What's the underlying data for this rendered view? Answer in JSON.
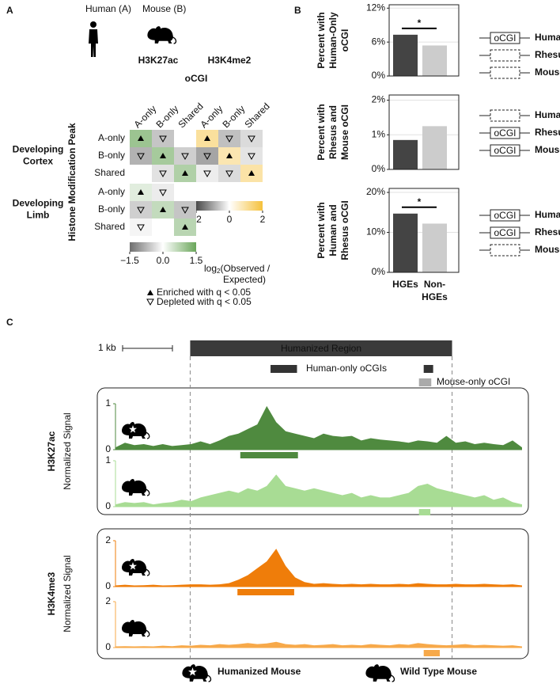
{
  "panel_labels": [
    "A",
    "B",
    "C"
  ],
  "panel_a": {
    "human": "Human (A)",
    "mouse": "Mouse (B)",
    "mark1": "H3K27ac",
    "mark1_color": "#5b9a4f",
    "mark2": "H3K4me2",
    "mark2_color": "#f5c13b",
    "column_group": "oCGI",
    "row_axis": "Histone Modification Peak",
    "columns": [
      "A-only",
      "B-only",
      "Shared"
    ],
    "rows": [
      "A-only",
      "B-only",
      "Shared"
    ],
    "tissues": [
      [
        "Developing",
        "Cortex"
      ],
      [
        "Developing",
        "Limb"
      ]
    ],
    "legend_title": {
      "base": "log",
      "sub": "2",
      "rest": "(Observed /",
      "rest2": "Expected)"
    },
    "enriched": "Enriched with q < 0.05",
    "depleted": "Depleted with q < 0.05"
  },
  "panel_b": {
    "box_label": "oCGI",
    "species": [
      "Human",
      "Rhesus",
      "Mouse"
    ]
  },
  "panel_c": {
    "xlim": [
      0,
      43
    ],
    "scale": "1 kb",
    "region": "Humanized Region",
    "region_range": [
      7.9,
      35.6
    ],
    "human_ocgi": "Human-only oCGIs",
    "human_ocgi_ranges": [
      [
        16.4,
        19.2
      ],
      [
        32.6,
        33.6
      ]
    ],
    "mouse_ocgi": "Mouse-only oCGI",
    "mouse_ocgi_ranges": [
      [
        32.1,
        33.4
      ]
    ],
    "marks": [
      {
        "name": "H3K27ac",
        "ylabel": "Normalized Signal",
        "color": "#2e7d46"
      },
      {
        "name": "H3K4me3",
        "ylabel": "Normalized Signal",
        "color": "#e8590c"
      }
    ],
    "humanized": "Humanized Mouse",
    "wild_type": "Wild Type Mouse"
  },
  "chart_data": [
    {
      "type": "heatmap",
      "tissue": 0,
      "zlim": [
        -1.5,
        1.5
      ],
      "colors": [
        "#6e6e6e",
        "#ffffff",
        "#6aa65a"
      ],
      "zticks": [
        {
          "value": -1.5,
          "label": "−1.5"
        },
        {
          "value": 0,
          "label": "0.0"
        },
        1.5
      ],
      "values": [
        [
          1.0,
          -0.6,
          0.0
        ],
        [
          -0.8,
          0.9,
          -0.5
        ],
        [
          0.0,
          -0.3,
          0.8
        ]
      ],
      "significance": [
        [
          "enriched",
          "depleted",
          null
        ],
        [
          "depleted",
          "enriched",
          "depleted"
        ],
        [
          null,
          "depleted",
          "enriched"
        ]
      ]
    },
    {
      "type": "heatmap",
      "tissue": 0,
      "zlim": [
        -2,
        2
      ],
      "colors": [
        "#4a4a4a",
        "#ffffff",
        "#f5c13b"
      ],
      "zticks": [
        {
          "value": -2,
          "label": "−2"
        },
        0,
        2
      ],
      "values": [
        [
          1.0,
          -0.7,
          -0.4
        ],
        [
          -1.0,
          0.8,
          -0.3
        ],
        [
          -0.2,
          -0.4,
          0.9
        ]
      ],
      "significance": [
        [
          "enriched",
          "depleted",
          "depleted"
        ],
        [
          "depleted",
          "enriched",
          "depleted"
        ],
        [
          "depleted",
          "depleted",
          "enriched"
        ]
      ]
    },
    {
      "type": "heatmap",
      "tissue": 1,
      "zlim": [
        -1.5,
        1.5
      ],
      "colors": [
        "#6e6e6e",
        "#ffffff",
        "#6aa65a"
      ],
      "values": [
        [
          0.3,
          -0.2,
          0.0
        ],
        [
          -0.5,
          0.6,
          -0.6
        ],
        [
          -0.1,
          0.0,
          0.7
        ]
      ],
      "significance": [
        [
          "enriched",
          "depleted",
          null
        ],
        [
          "depleted",
          "enriched",
          "depleted"
        ],
        [
          "depleted",
          null,
          "enriched"
        ]
      ]
    },
    {
      "type": "bar",
      "ylabel": [
        "Percent with",
        "Human-Only",
        "oCGI"
      ],
      "colors": [
        "#444444",
        "#cccccc"
      ],
      "values": [
        7.3,
        5.4
      ],
      "ylim": [
        0,
        12.6
      ],
      "yticks": [
        {
          "value": 0,
          "label": "0%"
        },
        {
          "value": 6,
          "label": "6%"
        },
        {
          "value": 12,
          "label": "12%"
        }
      ],
      "annotation": "*",
      "present": [
        true,
        false,
        false
      ]
    },
    {
      "type": "bar",
      "ylabel": [
        "Percent with",
        "Rhesus and",
        "Mouse oCGI"
      ],
      "colors": [
        "#444444",
        "#cccccc"
      ],
      "values": [
        0.85,
        1.25
      ],
      "ylim": [
        0,
        2.15
      ],
      "yticks": [
        {
          "value": 0,
          "label": "0%"
        },
        {
          "value": 1,
          "label": "1%"
        },
        {
          "value": 2,
          "label": "2%"
        }
      ],
      "present": [
        false,
        true,
        true
      ]
    },
    {
      "type": "bar",
      "ylabel": [
        "Percent with",
        "Human and",
        "Rhesus oCGI"
      ],
      "colors": [
        "#444444",
        "#cccccc"
      ],
      "values": [
        14.7,
        12.2
      ],
      "ylim": [
        0,
        21
      ],
      "yticks": [
        {
          "value": 0,
          "label": "0%"
        },
        {
          "value": 10,
          "label": "10%"
        },
        {
          "value": 20,
          "label": "20%"
        }
      ],
      "annotation": "*",
      "present": [
        true,
        true,
        false
      ],
      "categories": [
        [
          "HGEs"
        ],
        [
          "Non-",
          "HGEs"
        ]
      ]
    },
    {
      "type": "area",
      "mark": 0,
      "humanized": true,
      "color": "#4f8a3f",
      "ylim": [
        0,
        1
      ],
      "yticks": [
        0,
        1
      ],
      "peaks": [
        [
          13.2,
          19.3
        ]
      ],
      "values": [
        0.05,
        0.15,
        0.1,
        0.12,
        0.08,
        0.12,
        0.08,
        0.1,
        0.12,
        0.18,
        0.12,
        0.2,
        0.3,
        0.35,
        0.45,
        0.55,
        0.95,
        0.6,
        0.4,
        0.35,
        0.3,
        0.25,
        0.35,
        0.3,
        0.28,
        0.3,
        0.2,
        0.25,
        0.22,
        0.2,
        0.18,
        0.15,
        0.2,
        0.18,
        0.15,
        0.3,
        0.15,
        0.18,
        0.12,
        0.15,
        0.12,
        0.1,
        0.2,
        0.05
      ]
    },
    {
      "type": "area",
      "mark": 0,
      "humanized": false,
      "color": "#a8dc94",
      "ylim": [
        0,
        1
      ],
      "yticks": [
        0,
        1
      ],
      "peaks": [
        [
          32.1,
          33.3
        ]
      ],
      "values": [
        0.05,
        0.1,
        0.08,
        0.1,
        0.05,
        0.08,
        0.1,
        0.15,
        0.12,
        0.2,
        0.25,
        0.3,
        0.35,
        0.3,
        0.4,
        0.35,
        0.45,
        0.7,
        0.45,
        0.4,
        0.35,
        0.4,
        0.35,
        0.3,
        0.25,
        0.3,
        0.2,
        0.25,
        0.2,
        0.2,
        0.25,
        0.3,
        0.45,
        0.5,
        0.4,
        0.35,
        0.3,
        0.25,
        0.2,
        0.25,
        0.15,
        0.2,
        0.1,
        0.05
      ]
    },
    {
      "type": "area",
      "mark": 1,
      "humanized": true,
      "color": "#ef7d0a",
      "ylim": [
        0,
        2
      ],
      "yticks": [
        0,
        2
      ],
      "peaks": [
        [
          12.9,
          18.9
        ]
      ],
      "values": [
        0.05,
        0.08,
        0.05,
        0.06,
        0.08,
        0.05,
        0.06,
        0.08,
        0.1,
        0.1,
        0.08,
        0.1,
        0.15,
        0.3,
        0.5,
        0.8,
        1.1,
        1.65,
        0.9,
        0.4,
        0.2,
        0.12,
        0.15,
        0.12,
        0.1,
        0.12,
        0.1,
        0.12,
        0.1,
        0.1,
        0.12,
        0.1,
        0.15,
        0.12,
        0.1,
        0.1,
        0.12,
        0.1,
        0.1,
        0.12,
        0.1,
        0.08,
        0.1,
        0.05
      ]
    },
    {
      "type": "area",
      "mark": 1,
      "humanized": false,
      "color": "#f7a94a",
      "ylim": [
        0,
        2
      ],
      "yticks": [
        0,
        2
      ],
      "peaks": [
        [
          32.6,
          34.3
        ]
      ],
      "values": [
        0.05,
        0.06,
        0.05,
        0.06,
        0.05,
        0.08,
        0.06,
        0.1,
        0.08,
        0.12,
        0.1,
        0.15,
        0.12,
        0.15,
        0.2,
        0.15,
        0.18,
        0.25,
        0.15,
        0.12,
        0.15,
        0.1,
        0.12,
        0.15,
        0.1,
        0.12,
        0.1,
        0.15,
        0.12,
        0.1,
        0.15,
        0.12,
        0.2,
        0.15,
        0.12,
        0.1,
        0.12,
        0.15,
        0.1,
        0.12,
        0.1,
        0.08,
        0.1,
        0.05
      ]
    }
  ]
}
